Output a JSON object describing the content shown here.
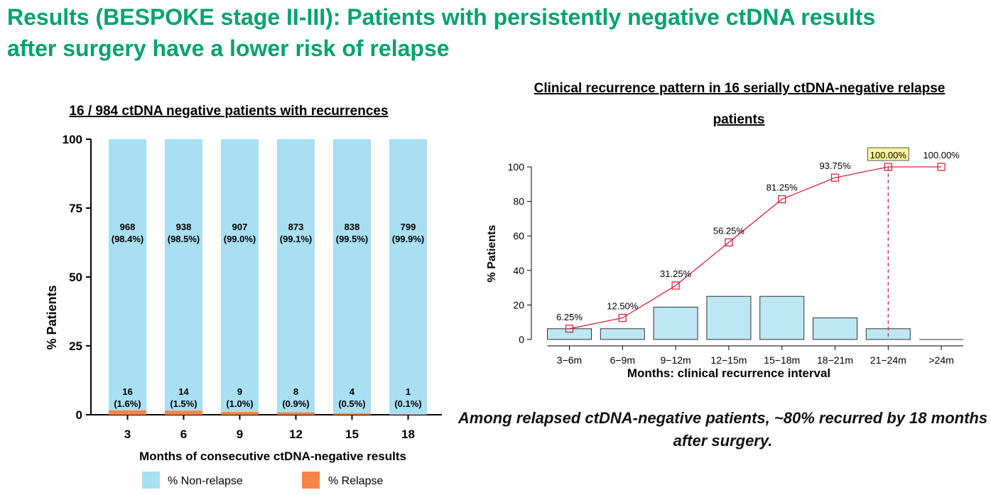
{
  "slide": {
    "title_line1": "Results (BESPOKE stage II-III): Patients with persistently negative ctDNA results",
    "title_line2": "after surgery have a lower risk of relapse",
    "takeaway": "Among relapsed ctDNA-negative patients, ~80% recurred by 18 months after surgery.",
    "title_color": "#00a36c"
  },
  "chart_data": [
    {
      "type": "bar",
      "stacked": true,
      "title": "16 / 984 ctDNA negative patients with recurrences",
      "xlabel": "Months of consecutive ctDNA-negative results",
      "ylabel": "% Patients",
      "ylim": [
        0,
        100
      ],
      "yticks": [
        0,
        25,
        50,
        75,
        100
      ],
      "categories": [
        "3",
        "6",
        "9",
        "12",
        "15",
        "18"
      ],
      "series": [
        {
          "name": "% Relapse",
          "color": "#f5844a",
          "values": [
            1.6,
            1.5,
            1.0,
            0.9,
            0.5,
            0.1
          ],
          "counts": [
            "16",
            "14",
            "9",
            "8",
            "4",
            "1"
          ],
          "labels": [
            "(1.6%)",
            "(1.5%)",
            "(1.0%)",
            "(0.9%)",
            "(0.5%)",
            "(0.1%)"
          ]
        },
        {
          "name": "% Non-relapse",
          "color": "#a8dff2",
          "values": [
            98.4,
            98.5,
            99.0,
            99.1,
            99.5,
            99.9
          ],
          "counts": [
            "968",
            "938",
            "907",
            "873",
            "838",
            "799"
          ],
          "labels": [
            "(98.4%)",
            "(98.5%)",
            "(99.0%)",
            "(99.1%)",
            "(99.5%)",
            "(99.9%)"
          ]
        }
      ],
      "legend": [
        "% Non-relapse",
        "% Relapse"
      ],
      "legend_position": "bottom"
    },
    {
      "type": "bar+line",
      "title": "Clinical recurrence pattern in 16 serially ctDNA-negative relapse patients",
      "xlabel": "Months: clinical recurrence interval",
      "ylabel": "% Patients",
      "ylim": [
        0,
        100
      ],
      "yticks": [
        0,
        20,
        40,
        60,
        80,
        100
      ],
      "categories": [
        "3−6m",
        "6−9m",
        "9−12m",
        "12−15m",
        "15−18m",
        "18−21m",
        "21−24m",
        ">24m"
      ],
      "bar_values": [
        6.25,
        6.25,
        18.75,
        25,
        25,
        12.5,
        6.25,
        0
      ],
      "bar_color": "#bde7f5",
      "line_values": [
        6.25,
        12.5,
        31.25,
        56.25,
        81.25,
        93.75,
        100,
        100
      ],
      "line_labels": [
        "6.25%",
        "12.50%",
        "31.25%",
        "56.25%",
        "81.25%",
        "93.75%",
        "100.00%",
        "100.00%"
      ],
      "line_color": "#d9263a",
      "highlight_index": 6,
      "highlight_color": "#fff59a"
    }
  ]
}
